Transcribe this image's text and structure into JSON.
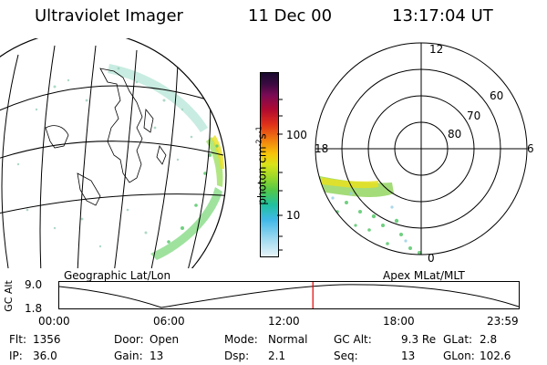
{
  "header": {
    "title": "Ultraviolet Imager",
    "date": "11 Dec 00",
    "time": "13:17:04 UT"
  },
  "geo_map": {
    "label": "Geographic Lat/Lon"
  },
  "colorbar": {
    "axis_label": "photon cm",
    "sup1": "-2",
    "s_char": "s",
    "sup2": "-1",
    "tick_high": "100",
    "tick_low": "10"
  },
  "polar_plot": {
    "label": "Apex MLat/MLT",
    "mlt_top": "12",
    "mlt_left": "18",
    "mlt_right": "6",
    "mlt_bottom": "0",
    "lat_60": "60",
    "lat_70": "70",
    "lat_80": "80"
  },
  "altitude_strip": {
    "axis_label": "GC Alt",
    "y_top": "9.0",
    "y_bottom": "1.8",
    "x_ticks": [
      "00:00",
      "06:00",
      "12:00",
      "18:00",
      "23:59"
    ],
    "current_time_fraction": 0.552,
    "marker_color": "#e00000"
  },
  "footer": {
    "rows": [
      [
        {
          "label": "Flt:",
          "value": "1356"
        },
        {
          "label": "Door:",
          "value": "Open"
        },
        {
          "label": "Mode:",
          "value": "Normal"
        },
        {
          "label": "GC Alt:",
          "value": "9.3 Re"
        },
        {
          "label": "GLat:",
          "value": "2.8"
        }
      ],
      [
        {
          "label": "IP:",
          "value": "36.0"
        },
        {
          "label": "Gain:",
          "value": "13"
        },
        {
          "label": "Dsp:",
          "value": "2.1"
        },
        {
          "label": "Seq:",
          "value": "13"
        },
        {
          "label": "GLon:",
          "value": "102.6"
        }
      ]
    ]
  }
}
